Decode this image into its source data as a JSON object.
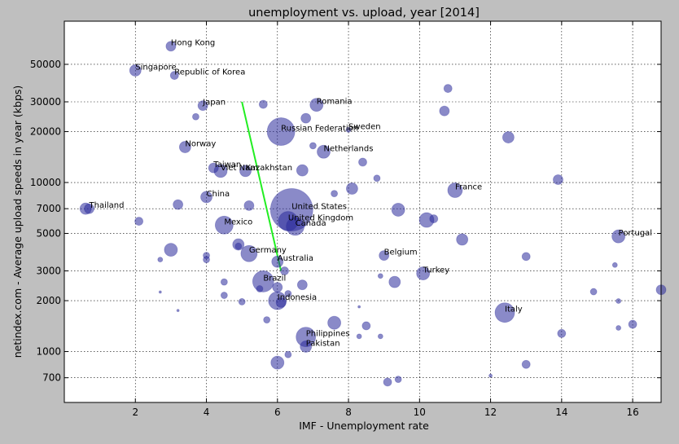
{
  "chart_data": {
    "type": "scatter",
    "title": "unemployment vs. upload, year [2014]",
    "xlabel": "IMF - Unemployment rate",
    "ylabel": "netindex.com - Average upload speeds in year (kbps)",
    "xlim": [
      0,
      16.8
    ],
    "ylim": [
      500,
      90000
    ],
    "yscale": "log",
    "x_ticks": [
      2,
      4,
      6,
      8,
      10,
      12,
      14,
      16
    ],
    "x_tick_labels": [
      "2",
      "4",
      "6",
      "8",
      "10",
      "12",
      "14",
      "16"
    ],
    "y_ticks": [
      700,
      1000,
      2000,
      3000,
      5000,
      7000,
      10000,
      20000,
      30000,
      50000
    ],
    "y_tick_labels": [
      "700",
      "1000",
      "2000",
      "3000",
      "5000",
      "7000",
      "10000",
      "20000",
      "30000",
      "50000"
    ],
    "grid": true,
    "marker_color": "#2a2a9a",
    "marker_opacity": 0.55,
    "trend_line": {
      "color": "#22ee22",
      "x": [
        5.0,
        6.1
      ],
      "y": [
        30000,
        3000
      ]
    },
    "points": [
      {
        "x": 3.0,
        "y": 64000,
        "size": 6,
        "label": "Hong Kong"
      },
      {
        "x": 2.0,
        "y": 46000,
        "size": 7,
        "label": "Singapore"
      },
      {
        "x": 3.1,
        "y": 43000,
        "size": 5,
        "label": "Republic of Korea"
      },
      {
        "x": 3.9,
        "y": 28500,
        "size": 6,
        "label": "Japan"
      },
      {
        "x": 7.1,
        "y": 28800,
        "size": 8,
        "label": "Romania"
      },
      {
        "x": 8.0,
        "y": 20500,
        "size": 3,
        "label": "Sweden"
      },
      {
        "x": 6.1,
        "y": 20000,
        "size": 17,
        "label": "Russian Federation"
      },
      {
        "x": 3.4,
        "y": 16200,
        "size": 7,
        "label": "Norway"
      },
      {
        "x": 7.3,
        "y": 15200,
        "size": 8,
        "label": "Netherlands"
      },
      {
        "x": 4.2,
        "y": 12200,
        "size": 6,
        "label": "Taiwan"
      },
      {
        "x": 4.4,
        "y": 11700,
        "size": 8,
        "label": "Viet Nam"
      },
      {
        "x": 5.1,
        "y": 11700,
        "size": 7,
        "label": "Kazakhstan"
      },
      {
        "x": 11.0,
        "y": 9000,
        "size": 9,
        "label": "France"
      },
      {
        "x": 4.0,
        "y": 8200,
        "size": 7,
        "label": "China"
      },
      {
        "x": 0.6,
        "y": 7000,
        "size": 7,
        "label": ""
      },
      {
        "x": 0.7,
        "y": 7000,
        "size": 6,
        "label": "Thailand"
      },
      {
        "x": 6.4,
        "y": 6900,
        "size": 26,
        "label": "United States"
      },
      {
        "x": 6.3,
        "y": 5900,
        "size": 12,
        "label": "United Kingdom"
      },
      {
        "x": 6.5,
        "y": 5500,
        "size": 11,
        "label": "Canada"
      },
      {
        "x": 4.5,
        "y": 5600,
        "size": 11,
        "label": "Mexico"
      },
      {
        "x": 15.6,
        "y": 4800,
        "size": 8,
        "label": "Portugal"
      },
      {
        "x": 5.2,
        "y": 3800,
        "size": 10,
        "label": "Germany"
      },
      {
        "x": 9.0,
        "y": 3700,
        "size": 6,
        "label": "Belgium"
      },
      {
        "x": 6.0,
        "y": 3400,
        "size": 7,
        "label": "Australia"
      },
      {
        "x": 10.1,
        "y": 2900,
        "size": 8,
        "label": "Turkey"
      },
      {
        "x": 5.6,
        "y": 2600,
        "size": 13,
        "label": "Brazil"
      },
      {
        "x": 6.0,
        "y": 2000,
        "size": 11,
        "label": "Indonesia"
      },
      {
        "x": 12.4,
        "y": 1700,
        "size": 12,
        "label": "Italy"
      },
      {
        "x": 6.8,
        "y": 1220,
        "size": 12,
        "label": "Philippines"
      },
      {
        "x": 6.8,
        "y": 1070,
        "size": 7,
        "label": "Pakistan"
      },
      {
        "x": 5.6,
        "y": 29000,
        "size": 5,
        "label": ""
      },
      {
        "x": 10.8,
        "y": 36000,
        "size": 5,
        "label": ""
      },
      {
        "x": 10.7,
        "y": 26500,
        "size": 6,
        "label": ""
      },
      {
        "x": 6.8,
        "y": 24000,
        "size": 6,
        "label": ""
      },
      {
        "x": 3.7,
        "y": 24500,
        "size": 4,
        "label": ""
      },
      {
        "x": 12.5,
        "y": 18500,
        "size": 7,
        "label": ""
      },
      {
        "x": 7.0,
        "y": 16500,
        "size": 4,
        "label": ""
      },
      {
        "x": 8.4,
        "y": 13200,
        "size": 5,
        "label": ""
      },
      {
        "x": 6.7,
        "y": 11800,
        "size": 7,
        "label": ""
      },
      {
        "x": 8.8,
        "y": 10600,
        "size": 4,
        "label": ""
      },
      {
        "x": 13.9,
        "y": 10400,
        "size": 6,
        "label": ""
      },
      {
        "x": 8.1,
        "y": 9200,
        "size": 7,
        "label": ""
      },
      {
        "x": 7.6,
        "y": 8600,
        "size": 4,
        "label": ""
      },
      {
        "x": 3.2,
        "y": 7400,
        "size": 6,
        "label": ""
      },
      {
        "x": 5.2,
        "y": 7300,
        "size": 6,
        "label": ""
      },
      {
        "x": 9.4,
        "y": 6900,
        "size": 8,
        "label": ""
      },
      {
        "x": 10.2,
        "y": 6000,
        "size": 9,
        "label": ""
      },
      {
        "x": 10.4,
        "y": 6100,
        "size": 5,
        "label": ""
      },
      {
        "x": 2.1,
        "y": 5900,
        "size": 5,
        "label": ""
      },
      {
        "x": 11.2,
        "y": 4600,
        "size": 7,
        "label": ""
      },
      {
        "x": 4.9,
        "y": 4300,
        "size": 7,
        "label": ""
      },
      {
        "x": 4.9,
        "y": 4200,
        "size": 4,
        "label": ""
      },
      {
        "x": 3.0,
        "y": 4000,
        "size": 8,
        "label": ""
      },
      {
        "x": 4.0,
        "y": 3700,
        "size": 4,
        "label": ""
      },
      {
        "x": 4.0,
        "y": 3500,
        "size": 4,
        "label": ""
      },
      {
        "x": 2.7,
        "y": 3500,
        "size": 3,
        "label": ""
      },
      {
        "x": 13.0,
        "y": 3650,
        "size": 5,
        "label": ""
      },
      {
        "x": 15.5,
        "y": 3250,
        "size": 3,
        "label": ""
      },
      {
        "x": 6.2,
        "y": 3000,
        "size": 5,
        "label": ""
      },
      {
        "x": 8.9,
        "y": 2800,
        "size": 3,
        "label": ""
      },
      {
        "x": 9.3,
        "y": 2580,
        "size": 7,
        "label": ""
      },
      {
        "x": 4.5,
        "y": 2580,
        "size": 4,
        "label": ""
      },
      {
        "x": 6.7,
        "y": 2480,
        "size": 6,
        "label": ""
      },
      {
        "x": 6.0,
        "y": 2400,
        "size": 6,
        "label": ""
      },
      {
        "x": 5.5,
        "y": 2350,
        "size": 4,
        "label": ""
      },
      {
        "x": 16.8,
        "y": 2320,
        "size": 6,
        "label": ""
      },
      {
        "x": 14.9,
        "y": 2260,
        "size": 4,
        "label": ""
      },
      {
        "x": 6.3,
        "y": 2200,
        "size": 4,
        "label": ""
      },
      {
        "x": 4.5,
        "y": 2150,
        "size": 4,
        "label": ""
      },
      {
        "x": 2.7,
        "y": 2250,
        "size": 1.5,
        "label": ""
      },
      {
        "x": 6.1,
        "y": 1950,
        "size": 6,
        "label": ""
      },
      {
        "x": 5.0,
        "y": 1970,
        "size": 4,
        "label": ""
      },
      {
        "x": 15.6,
        "y": 1990,
        "size": 3,
        "label": ""
      },
      {
        "x": 8.3,
        "y": 1840,
        "size": 1.5,
        "label": ""
      },
      {
        "x": 3.2,
        "y": 1750,
        "size": 1.5,
        "label": ""
      },
      {
        "x": 7.6,
        "y": 1480,
        "size": 8,
        "label": ""
      },
      {
        "x": 5.7,
        "y": 1540,
        "size": 4,
        "label": ""
      },
      {
        "x": 8.5,
        "y": 1420,
        "size": 5,
        "label": ""
      },
      {
        "x": 16.0,
        "y": 1450,
        "size": 5,
        "label": ""
      },
      {
        "x": 15.6,
        "y": 1380,
        "size": 3,
        "label": ""
      },
      {
        "x": 14.0,
        "y": 1280,
        "size": 5,
        "label": ""
      },
      {
        "x": 8.3,
        "y": 1230,
        "size": 3,
        "label": ""
      },
      {
        "x": 8.9,
        "y": 1230,
        "size": 3,
        "label": ""
      },
      {
        "x": 6.3,
        "y": 960,
        "size": 4,
        "label": ""
      },
      {
        "x": 6.0,
        "y": 860,
        "size": 8,
        "label": ""
      },
      {
        "x": 13.0,
        "y": 840,
        "size": 5,
        "label": ""
      },
      {
        "x": 12.0,
        "y": 720,
        "size": 2,
        "label": ""
      },
      {
        "x": 9.1,
        "y": 660,
        "size": 5,
        "label": ""
      },
      {
        "x": 9.4,
        "y": 685,
        "size": 4,
        "label": ""
      }
    ]
  }
}
